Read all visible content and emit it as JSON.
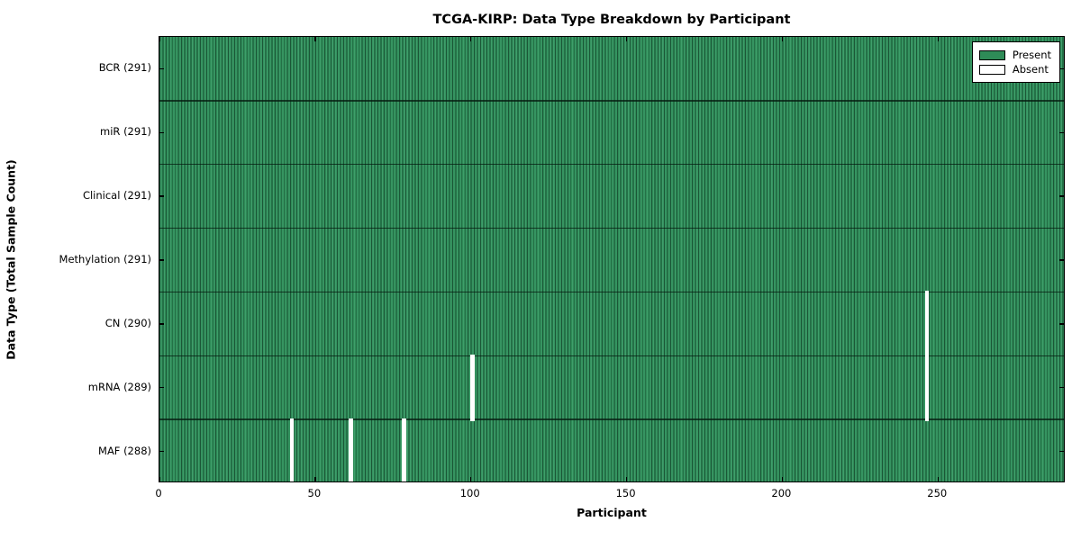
{
  "chart_data": {
    "type": "heatmap",
    "title": "TCGA-KIRP: Data Type Breakdown by Participant",
    "xlabel": "Participant",
    "ylabel": "Data Type (Total Sample Count)",
    "xlim": [
      0,
      291
    ],
    "n_participants": 291,
    "x_ticks": [
      0,
      50,
      100,
      150,
      200,
      250
    ],
    "grid": false,
    "legend_position": "upper right",
    "legend": [
      {
        "label": "Present",
        "color": "#2e8b57"
      },
      {
        "label": "Absent",
        "color": "#ffffff"
      }
    ],
    "rows": [
      {
        "label": "BCR (291)",
        "name": "BCR",
        "total": 291,
        "absent_participants": []
      },
      {
        "label": "miR (291)",
        "name": "miR",
        "total": 291,
        "absent_participants": []
      },
      {
        "label": "Clinical (291)",
        "name": "Clinical",
        "total": 291,
        "absent_participants": []
      },
      {
        "label": "Methylation (291)",
        "name": "Methylation",
        "total": 291,
        "absent_participants": []
      },
      {
        "label": "CN (290)",
        "name": "CN",
        "total": 290,
        "absent_participants": [
          246
        ]
      },
      {
        "label": "mRNA (289)",
        "name": "mRNA",
        "total": 289,
        "absent_participants": [
          100,
          246
        ]
      },
      {
        "label": "MAF (288)",
        "name": "MAF",
        "total": 288,
        "absent_participants": [
          42,
          61,
          78
        ]
      }
    ],
    "colors": {
      "present": "#2e8b57",
      "present_light": "#3f9e6b",
      "present_edge": "#1b5737",
      "absent": "#ffffff",
      "divider": "rgba(5,25,15,0.75)",
      "axis": "#000000",
      "background": "#ffffff"
    }
  }
}
